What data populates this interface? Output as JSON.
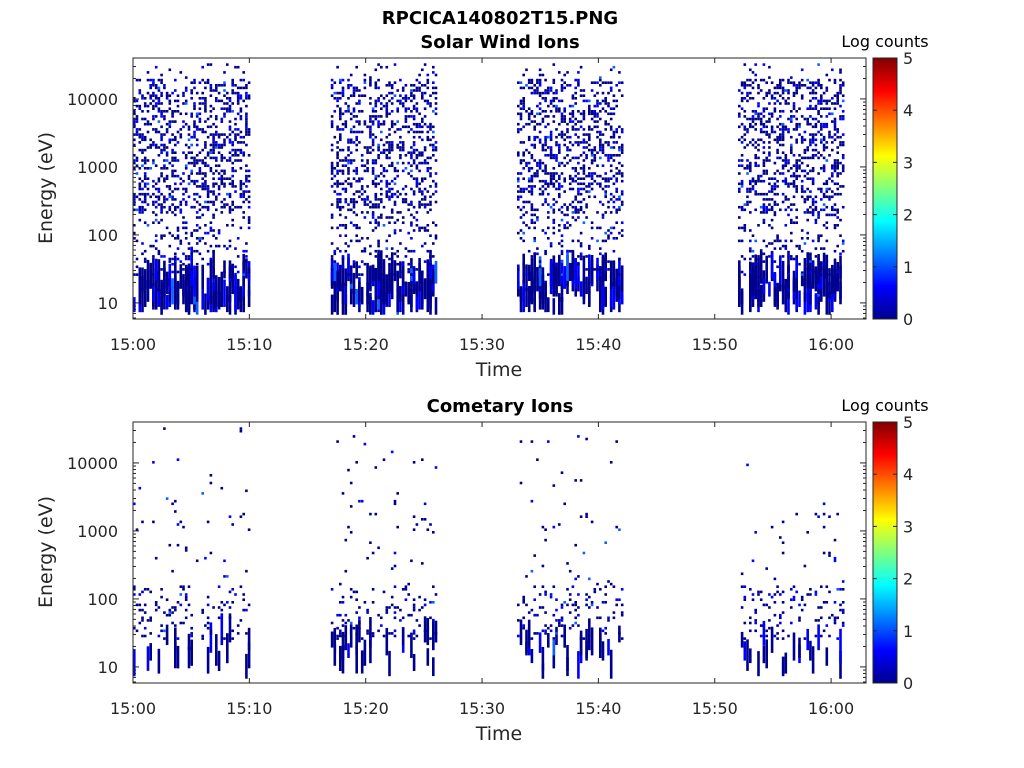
{
  "figure_title": "RPCICA140802T15.PNG",
  "chart_data": [
    {
      "type": "heatmap",
      "title": "Solar Wind Ions",
      "xlabel": "Time",
      "ylabel": "Energy (eV)",
      "x_ticks": [
        "15:00",
        "15:10",
        "15:20",
        "15:30",
        "15:40",
        "15:50",
        "16:00"
      ],
      "xlim_minutes": [
        0,
        63
      ],
      "y_scale": "log",
      "y_ticks": [
        {
          "value": 10,
          "label": "10"
        },
        {
          "value": 100,
          "label": "100"
        },
        {
          "value": 1000,
          "label": "1000"
        },
        {
          "value": 10000,
          "label": "10000"
        }
      ],
      "ylim": [
        5.8,
        40000
      ],
      "colorbar": {
        "label": "Log counts",
        "min": 0,
        "max": 5,
        "ticks": [
          "0",
          "1",
          "2",
          "3",
          "4",
          "5"
        ],
        "colormap": "jet"
      },
      "activity_intervals": [
        {
          "start": "15:00",
          "end": "15:10",
          "typical_log_counts": 0
        },
        {
          "start": "15:17",
          "end": "15:26",
          "typical_log_counts": 0
        },
        {
          "start": "15:33",
          "end": "15:42",
          "typical_log_counts": 0
        },
        {
          "start": "15:52",
          "end": "16:01",
          "typical_log_counts": 0
        }
      ],
      "colors": {
        "low": "#00008f",
        "mid": "#0000ff",
        "peak": "#1060ff"
      }
    },
    {
      "type": "heatmap",
      "title": "Cometary Ions",
      "xlabel": "Time",
      "ylabel": "Energy (eV)",
      "x_ticks": [
        "15:00",
        "15:10",
        "15:20",
        "15:30",
        "15:40",
        "15:50",
        "16:00"
      ],
      "xlim_minutes": [
        0,
        63
      ],
      "y_scale": "log",
      "y_ticks": [
        {
          "value": 10,
          "label": "10"
        },
        {
          "value": 100,
          "label": "100"
        },
        {
          "value": 1000,
          "label": "1000"
        },
        {
          "value": 10000,
          "label": "10000"
        }
      ],
      "ylim": [
        5.8,
        40000
      ],
      "colorbar": {
        "label": "Log counts",
        "min": 0,
        "max": 5,
        "ticks": [
          "0",
          "1",
          "2",
          "3",
          "4",
          "5"
        ],
        "colormap": "jet"
      },
      "activity_intervals": [
        {
          "start": "15:00",
          "end": "15:10",
          "typical_log_counts": 0
        },
        {
          "start": "15:17",
          "end": "15:26",
          "typical_log_counts": 0
        },
        {
          "start": "15:33",
          "end": "15:42",
          "typical_log_counts": 0
        },
        {
          "start": "15:52",
          "end": "16:01",
          "typical_log_counts": 0
        }
      ],
      "colors": {
        "low": "#00008f",
        "mid": "#0000ff",
        "peak": "#1060ff"
      }
    }
  ]
}
